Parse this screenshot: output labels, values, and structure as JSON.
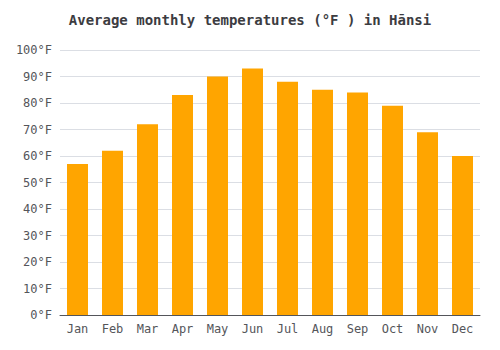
{
  "chart_data": {
    "type": "bar",
    "title": "Average monthly temperatures (°F ) in Hānsi",
    "categories": [
      "Jan",
      "Feb",
      "Mar",
      "Apr",
      "May",
      "Jun",
      "Jul",
      "Aug",
      "Sep",
      "Oct",
      "Nov",
      "Dec"
    ],
    "values": [
      57,
      62,
      72,
      83,
      90,
      93,
      88,
      85,
      84,
      79,
      69,
      60
    ],
    "color": "#FFA500",
    "ylim": [
      0,
      100
    ],
    "yticks": [
      {
        "value": 0,
        "label": "0°F"
      },
      {
        "value": 10,
        "label": "10°F"
      },
      {
        "value": 20,
        "label": "20°F"
      },
      {
        "value": 30,
        "label": "30°F"
      },
      {
        "value": 40,
        "label": "40°F"
      },
      {
        "value": 50,
        "label": "50°F"
      },
      {
        "value": 60,
        "label": "60°F"
      },
      {
        "value": 70,
        "label": "70°F"
      },
      {
        "value": 80,
        "label": "80°F"
      },
      {
        "value": 90,
        "label": "90°F"
      },
      {
        "value": 100,
        "label": "100°F"
      }
    ],
    "grid": true
  }
}
